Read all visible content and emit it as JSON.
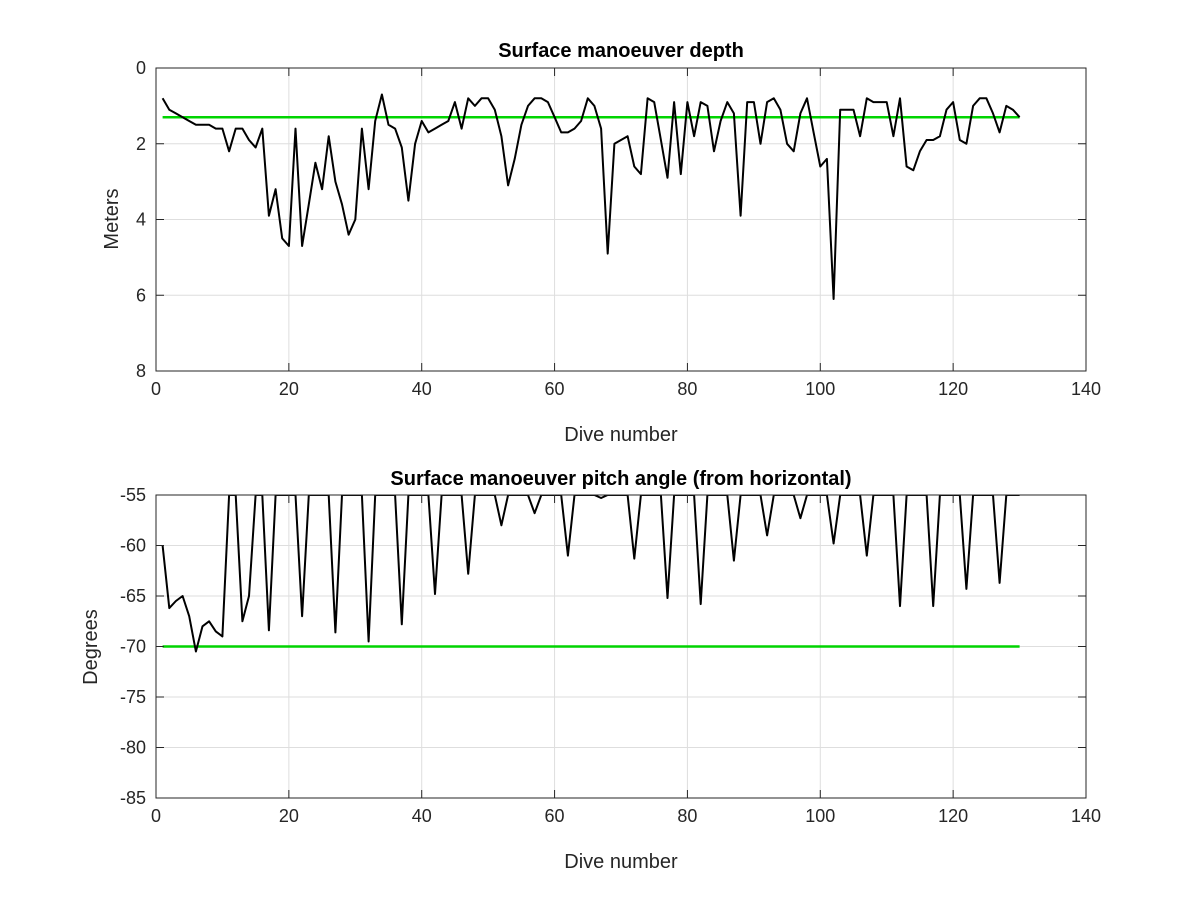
{
  "colors": {
    "data_line": "#000000",
    "reference_line": "#00d400",
    "grid": "#dedede"
  },
  "chart_data": [
    {
      "type": "line",
      "title": "Surface manoeuver depth",
      "xlabel": "Dive number",
      "ylabel": "Meters",
      "xlim": [
        0,
        140
      ],
      "ylim": [
        0,
        8
      ],
      "y_reversed": true,
      "xticks": [
        "0",
        "20",
        "40",
        "60",
        "80",
        "100",
        "120",
        "140"
      ],
      "yticks": [
        "0",
        "2",
        "4",
        "6",
        "8"
      ],
      "grid": true,
      "series": [
        {
          "role": "measurement",
          "color": "#000000",
          "x": [
            1,
            2,
            3,
            4,
            5,
            6,
            7,
            8,
            9,
            10,
            11,
            12,
            13,
            14,
            15,
            16,
            17,
            18,
            19,
            20,
            21,
            22,
            23,
            24,
            25,
            26,
            27,
            28,
            29,
            30,
            31,
            32,
            33,
            34,
            35,
            36,
            37,
            38,
            39,
            40,
            41,
            42,
            43,
            44,
            45,
            46,
            47,
            48,
            49,
            50,
            51,
            52,
            53,
            54,
            55,
            56,
            57,
            58,
            59,
            60,
            61,
            62,
            63,
            64,
            65,
            66,
            67,
            68,
            69,
            70,
            71,
            72,
            73,
            74,
            75,
            76,
            77,
            78,
            79,
            80,
            81,
            82,
            83,
            84,
            85,
            86,
            87,
            88,
            89,
            90,
            91,
            92,
            93,
            94,
            95,
            96,
            97,
            98,
            99,
            100,
            101,
            102,
            103,
            104,
            105,
            106,
            107,
            108,
            109,
            110,
            111,
            112,
            113,
            114,
            115,
            116,
            117,
            118,
            119,
            120,
            121,
            122,
            123,
            124,
            125,
            126,
            127,
            128,
            129,
            130
          ],
          "y": [
            0.8,
            1.1,
            1.2,
            1.3,
            1.4,
            1.5,
            1.5,
            1.5,
            1.6,
            1.6,
            2.2,
            1.6,
            1.6,
            1.9,
            2.1,
            1.6,
            3.9,
            3.2,
            4.5,
            4.7,
            1.6,
            4.7,
            3.6,
            2.5,
            3.2,
            1.8,
            3.0,
            3.6,
            4.4,
            4.0,
            1.6,
            3.2,
            1.4,
            0.7,
            1.5,
            1.6,
            2.1,
            3.5,
            2.0,
            1.4,
            1.7,
            1.6,
            1.5,
            1.4,
            0.9,
            1.6,
            0.8,
            1.0,
            0.8,
            0.8,
            1.1,
            1.8,
            3.1,
            2.4,
            1.5,
            1.0,
            0.8,
            0.8,
            0.9,
            1.3,
            1.7,
            1.7,
            1.6,
            1.4,
            0.8,
            1.0,
            1.6,
            4.9,
            2.0,
            1.9,
            1.8,
            2.6,
            2.8,
            0.8,
            0.9,
            1.9,
            2.9,
            0.9,
            2.8,
            0.9,
            1.8,
            0.9,
            1.0,
            2.2,
            1.4,
            0.9,
            1.2,
            3.9,
            0.9,
            0.9,
            2.0,
            0.9,
            0.8,
            1.1,
            2.0,
            2.2,
            1.2,
            0.8,
            1.7,
            2.6,
            2.4,
            6.1,
            1.1,
            1.1,
            1.1,
            1.8,
            0.8,
            0.9,
            0.9,
            0.9,
            1.8,
            0.8,
            2.6,
            2.7,
            2.2,
            1.9,
            1.9,
            1.8,
            1.1,
            0.9,
            1.9,
            2.0,
            1.0,
            0.8,
            0.8,
            1.2,
            1.7,
            1.0,
            1.1,
            1.3
          ]
        },
        {
          "role": "reference",
          "color": "#00d400",
          "x": [
            1,
            130
          ],
          "y": [
            1.3,
            1.3
          ]
        }
      ]
    },
    {
      "type": "line",
      "title": "Surface manoeuver pitch angle (from horizontal)",
      "xlabel": "Dive number",
      "ylabel": "Degrees",
      "xlim": [
        0,
        140
      ],
      "ylim": [
        -85,
        -55
      ],
      "y_reversed": false,
      "xticks": [
        "0",
        "20",
        "40",
        "60",
        "80",
        "100",
        "120",
        "140"
      ],
      "yticks": [
        "-55",
        "-60",
        "-65",
        "-70",
        "-75",
        "-80",
        "-85"
      ],
      "grid": true,
      "series": [
        {
          "role": "measurement",
          "color": "#000000",
          "x": [
            1,
            2,
            3,
            4,
            5,
            6,
            7,
            8,
            9,
            10,
            11,
            12,
            13,
            14,
            15,
            16,
            17,
            18,
            19,
            20,
            21,
            22,
            23,
            24,
            25,
            26,
            27,
            28,
            29,
            30,
            31,
            32,
            33,
            34,
            35,
            36,
            37,
            38,
            39,
            40,
            41,
            42,
            43,
            44,
            45,
            46,
            47,
            48,
            49,
            50,
            51,
            52,
            53,
            54,
            55,
            56,
            57,
            58,
            59,
            60,
            61,
            62,
            63,
            64,
            65,
            66,
            67,
            68,
            69,
            70,
            71,
            72,
            73,
            74,
            75,
            76,
            77,
            78,
            79,
            80,
            81,
            82,
            83,
            84,
            85,
            86,
            87,
            88,
            89,
            90,
            91,
            92,
            93,
            94,
            95,
            96,
            97,
            98,
            99,
            100,
            101,
            102,
            103,
            104,
            105,
            106,
            107,
            108,
            109,
            110,
            111,
            112,
            113,
            114,
            115,
            116,
            117,
            118,
            119,
            120,
            121,
            122,
            123,
            124,
            125,
            126,
            127,
            128,
            129,
            130
          ],
          "y": [
            -60,
            -66.2,
            -65.5,
            -65,
            -67,
            -70.5,
            -68,
            -67.5,
            -68.5,
            -69,
            -55,
            -55,
            -67.5,
            -65,
            -55,
            -55,
            -68.4,
            -55,
            -55,
            -55,
            -55,
            -67,
            -55,
            -55,
            -55,
            -55,
            -68.6,
            -55,
            -55,
            -55,
            -55,
            -69.5,
            -55,
            -55,
            -55,
            -55,
            -67.8,
            -55,
            -55,
            -55,
            -55,
            -64.8,
            -55,
            -55,
            -55,
            -55,
            -62.8,
            -55,
            -55,
            -55,
            -55,
            -58,
            -55,
            -55,
            -55,
            -55,
            -56.8,
            -55,
            -55,
            -55,
            -55,
            -61,
            -55,
            -55,
            -55,
            -55,
            -55.3,
            -55,
            -55,
            -55,
            -55,
            -61.3,
            -55,
            -55,
            -55,
            -55,
            -65.2,
            -55,
            -55,
            -55,
            -55,
            -65.8,
            -55,
            -55,
            -55,
            -55,
            -61.5,
            -55,
            -55,
            -55,
            -55,
            -59,
            -55,
            -55,
            -55,
            -55,
            -57.3,
            -55,
            -55,
            -55,
            -55,
            -59.8,
            -55,
            -55,
            -55,
            -55,
            -61,
            -55,
            -55,
            -55,
            -55,
            -66,
            -55,
            -55,
            -55,
            -55,
            -66,
            -55,
            -55,
            -55,
            -55,
            -64.3,
            -55,
            -55,
            -55,
            -55,
            -63.7,
            -55,
            -55,
            -55
          ]
        },
        {
          "role": "reference",
          "color": "#00d400",
          "x": [
            1,
            130
          ],
          "y": [
            -70,
            -70
          ]
        }
      ]
    }
  ]
}
